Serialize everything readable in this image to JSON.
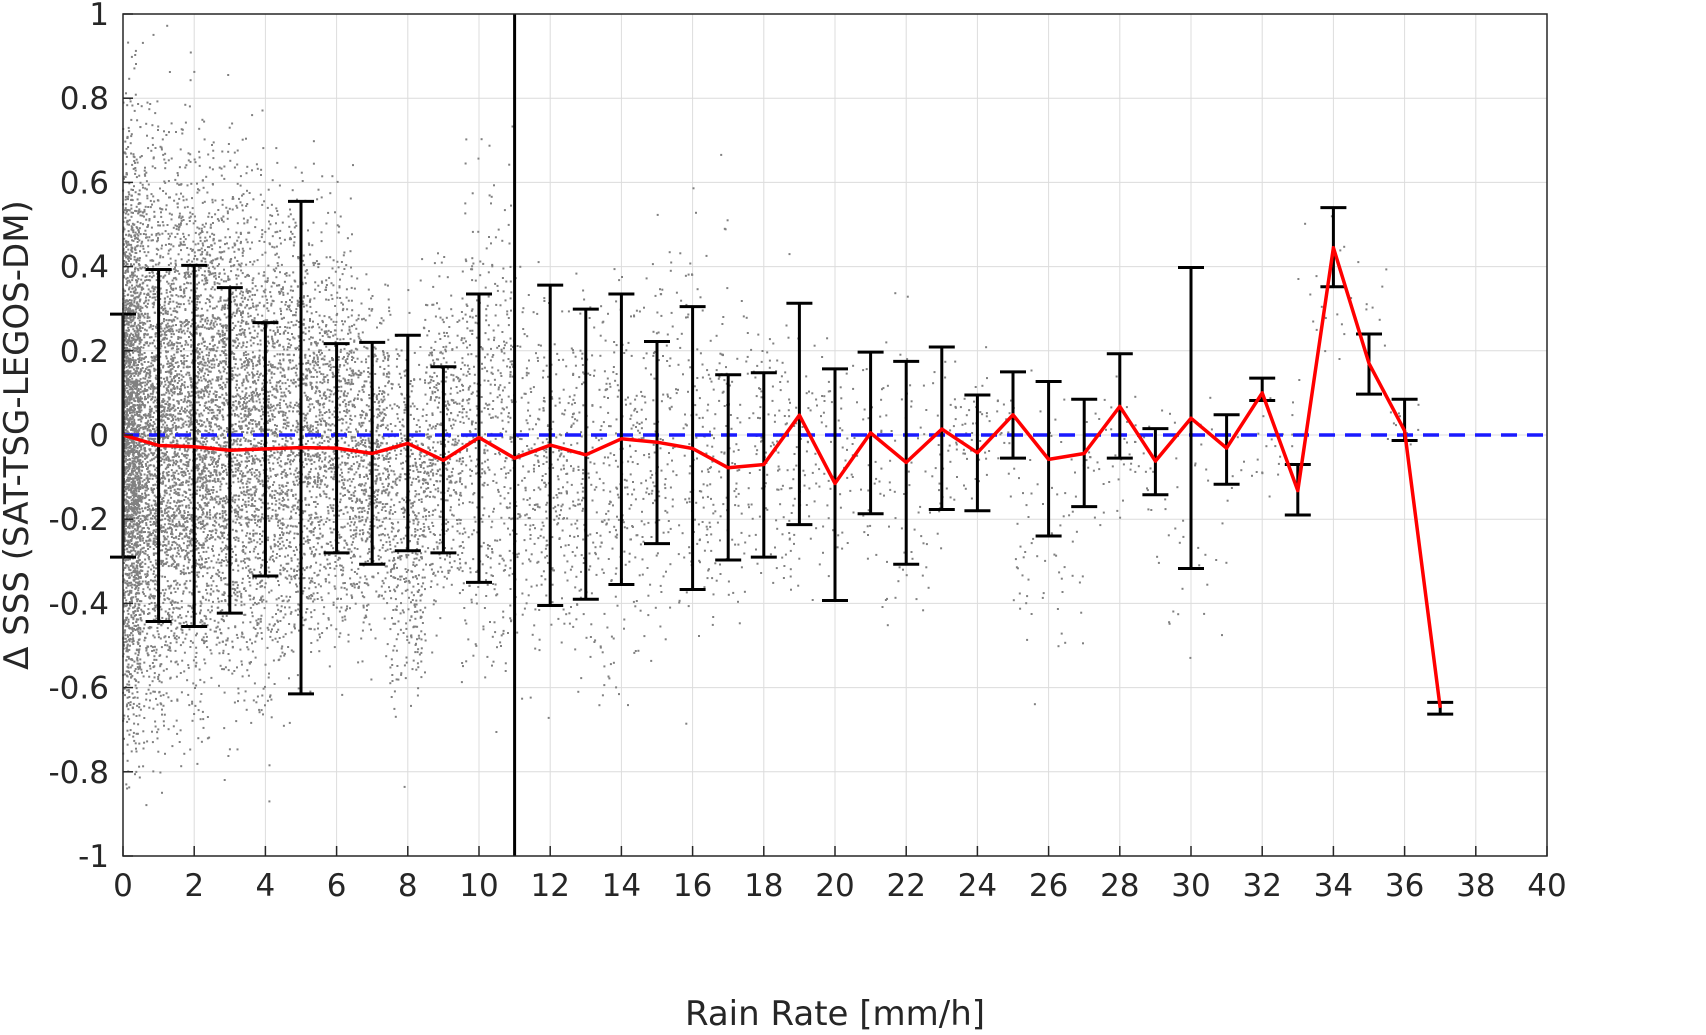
{
  "chart_data": {
    "type": "scatter",
    "xlabel": "Rain Rate [mm/h]",
    "ylabel": "Δ SSS (SAT-TSG-LEGOS-DM)",
    "xlim": [
      0,
      40
    ],
    "ylim": [
      -1,
      1
    ],
    "x_ticks": [
      0,
      2,
      4,
      6,
      8,
      10,
      12,
      14,
      16,
      18,
      20,
      22,
      24,
      26,
      28,
      30,
      32,
      34,
      36,
      38,
      40
    ],
    "y_ticks": [
      -1,
      -0.8,
      -0.6,
      -0.4,
      -0.2,
      0,
      0.2,
      0.4,
      0.6,
      0.8,
      1
    ],
    "x_tick_labels": [
      "0",
      "2",
      "4",
      "6",
      "8",
      "10",
      "12",
      "14",
      "16",
      "18",
      "20",
      "22",
      "24",
      "26",
      "28",
      "30",
      "32",
      "34",
      "36",
      "38",
      "40"
    ],
    "y_tick_labels": [
      "-1",
      "-0.8",
      "-0.6",
      "-0.4",
      "-0.2",
      "0",
      "0.2",
      "0.4",
      "0.6",
      "0.8",
      "1"
    ],
    "grid": true,
    "reference_line": {
      "y": 0,
      "style": "dashed",
      "color": "#1a1aff"
    },
    "vertical_line": {
      "x": 11,
      "color": "#000000"
    },
    "mean_series": {
      "color": "#ff0000",
      "x": [
        0,
        1,
        2,
        3,
        4,
        5,
        6,
        7,
        8,
        9,
        10,
        11,
        12,
        13,
        14,
        15,
        16,
        17,
        18,
        19,
        20,
        21,
        22,
        23,
        24,
        25,
        26,
        27,
        28,
        29,
        30,
        31,
        32,
        33,
        34,
        35,
        36,
        37
      ],
      "y": [
        0.0,
        -0.025,
        -0.028,
        -0.036,
        -0.033,
        -0.03,
        -0.031,
        -0.044,
        -0.02,
        -0.06,
        -0.006,
        -0.055,
        -0.024,
        -0.047,
        -0.009,
        -0.017,
        -0.032,
        -0.078,
        -0.07,
        0.047,
        -0.115,
        0.005,
        -0.065,
        0.014,
        -0.042,
        0.048,
        -0.058,
        -0.044,
        0.068,
        -0.062,
        0.04,
        -0.031,
        0.1,
        -0.132,
        0.445,
        0.17,
        0.01,
        -0.648
      ]
    },
    "error_bars": {
      "color": "#000000",
      "x": [
        0,
        1,
        2,
        3,
        4,
        5,
        6,
        7,
        8,
        9,
        10,
        12,
        13,
        14,
        15,
        16,
        17,
        18,
        19,
        20,
        21,
        22,
        23,
        24,
        25,
        26,
        27,
        28,
        29,
        30,
        31,
        32,
        33,
        34,
        35,
        36,
        37
      ],
      "upper": [
        0.287,
        0.393,
        0.403,
        0.35,
        0.267,
        0.555,
        0.217,
        0.22,
        0.237,
        0.162,
        0.335,
        0.356,
        0.299,
        0.335,
        0.222,
        0.305,
        0.143,
        0.148,
        0.313,
        0.157,
        0.197,
        0.175,
        0.209,
        0.095,
        0.15,
        0.127,
        0.085,
        0.193,
        0.015,
        0.398,
        0.048,
        0.135,
        -0.07,
        0.54,
        0.24,
        0.085,
        -0.635
      ],
      "lower": [
        -0.29,
        -0.443,
        -0.455,
        -0.423,
        -0.335,
        -0.615,
        -0.28,
        -0.307,
        -0.275,
        -0.28,
        -0.35,
        -0.405,
        -0.39,
        -0.355,
        -0.258,
        -0.367,
        -0.297,
        -0.29,
        -0.213,
        -0.393,
        -0.187,
        -0.307,
        -0.177,
        -0.18,
        -0.055,
        -0.24,
        -0.17,
        -0.055,
        -0.142,
        -0.317,
        -0.117,
        0.082,
        -0.19,
        0.352,
        0.097,
        -0.013,
        -0.663
      ]
    },
    "scatter_points": {
      "color": "#808080",
      "bins": [
        {
          "x": [
            0,
            0.5
          ],
          "ymin": -1.0,
          "ymax": 1.0,
          "n": 2200
        },
        {
          "x": [
            0.5,
            1.5
          ],
          "ymin": -1.0,
          "ymax": 1.0,
          "n": 1800
        },
        {
          "x": [
            1.5,
            2.5
          ],
          "ymin": -0.95,
          "ymax": 1.0,
          "n": 1500
        },
        {
          "x": [
            2.5,
            3.5
          ],
          "ymin": -0.9,
          "ymax": 0.98,
          "n": 1200
        },
        {
          "x": [
            3.5,
            4.5
          ],
          "ymin": -0.9,
          "ymax": 0.9,
          "n": 1000
        },
        {
          "x": [
            4.5,
            5.5
          ],
          "ymin": -0.8,
          "ymax": 0.8,
          "n": 850
        },
        {
          "x": [
            5.5,
            6.5
          ],
          "ymin": -0.7,
          "ymax": 0.7,
          "n": 700
        },
        {
          "x": [
            6.5,
            7.5
          ],
          "ymin": -0.65,
          "ymax": 0.55,
          "n": 600
        },
        {
          "x": [
            7.5,
            8.5
          ],
          "ymin": -0.85,
          "ymax": 0.45,
          "n": 500
        },
        {
          "x": [
            8.5,
            9.5
          ],
          "ymin": -0.6,
          "ymax": 0.55,
          "n": 420
        },
        {
          "x": [
            9.5,
            11
          ],
          "ymin": -0.8,
          "ymax": 0.8,
          "n": 500
        },
        {
          "x": [
            11,
            13
          ],
          "ymin": -0.75,
          "ymax": 0.6,
          "n": 420
        },
        {
          "x": [
            13,
            15
          ],
          "ymin": -0.85,
          "ymax": 0.65,
          "n": 320
        },
        {
          "x": [
            15,
            17
          ],
          "ymin": -0.7,
          "ymax": 0.7,
          "n": 260
        },
        {
          "x": [
            17,
            19
          ],
          "ymin": -0.6,
          "ymax": 0.5,
          "n": 180
        },
        {
          "x": [
            19,
            21
          ],
          "ymin": -0.45,
          "ymax": 0.35,
          "n": 110
        },
        {
          "x": [
            21,
            23
          ],
          "ymin": -0.65,
          "ymax": 0.45,
          "n": 90
        },
        {
          "x": [
            23,
            25
          ],
          "ymin": -0.3,
          "ymax": 0.3,
          "n": 80
        },
        {
          "x": [
            25,
            27
          ],
          "ymin": -0.75,
          "ymax": 0.28,
          "n": 70
        },
        {
          "x": [
            27,
            29
          ],
          "ymin": -0.3,
          "ymax": 0.2,
          "n": 55
        },
        {
          "x": [
            29,
            31
          ],
          "ymin": -0.7,
          "ymax": 0.3,
          "n": 40
        },
        {
          "x": [
            31,
            33
          ],
          "ymin": -0.2,
          "ymax": 0.13,
          "n": 30
        },
        {
          "x": [
            33,
            35.5
          ],
          "ymin": 0.05,
          "ymax": 0.55,
          "n": 30
        },
        {
          "x": [
            35.5,
            36.5
          ],
          "ymin": -0.05,
          "ymax": 0.1,
          "n": 12
        }
      ]
    }
  }
}
